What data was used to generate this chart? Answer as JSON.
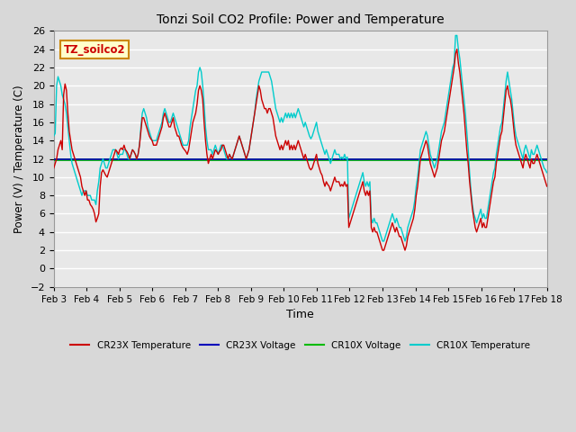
{
  "title": "Tonzi Soil CO2 Profile: Power and Temperature",
  "xlabel": "Time",
  "ylabel": "Power (V) / Temperature (C)",
  "ylim": [
    -2,
    26
  ],
  "yticks": [
    -2,
    0,
    2,
    4,
    6,
    8,
    10,
    12,
    14,
    16,
    18,
    20,
    22,
    24,
    26
  ],
  "bg_color": "#d8d8d8",
  "plot_bg_color": "#e8e8e8",
  "cr23x_temp_color": "#cc0000",
  "cr23x_volt_color": "#0000bb",
  "cr10x_volt_color": "#00bb00",
  "cr10x_temp_color": "#00cccc",
  "legend_box_color": "#ffffcc",
  "legend_box_edge": "#cc8800",
  "annotation_text": "TZ_soilco2",
  "annotation_color": "#cc0000",
  "xticklabels": [
    "Feb 3",
    "Feb 4",
    "Feb 5",
    "Feb 6",
    "Feb 7",
    "Feb 8",
    "Feb 9",
    "Feb 10",
    "Feb 11",
    "Feb 12",
    "Feb 13",
    "Feb 14",
    "Feb 15",
    "Feb 16",
    "Feb 17",
    "Feb 18"
  ],
  "cr23x_voltage_value": 12.0,
  "cr10x_voltage_value": 12.0,
  "cr23x_temp": [
    11.0,
    11.5,
    12.0,
    13.0,
    13.5,
    14.0,
    13.0,
    19.0,
    20.2,
    19.5,
    17.0,
    15.0,
    14.0,
    13.0,
    12.5,
    12.0,
    11.5,
    11.0,
    10.5,
    10.0,
    9.0,
    8.5,
    8.0,
    8.5,
    7.5,
    7.5,
    7.0,
    6.8,
    6.5,
    6.0,
    5.1,
    5.5,
    6.0,
    9.0,
    10.5,
    10.8,
    10.5,
    10.2,
    10.0,
    10.5,
    11.0,
    11.5,
    12.0,
    12.5,
    13.0,
    12.8,
    12.5,
    13.0,
    13.2,
    13.0,
    13.5,
    13.0,
    12.8,
    12.5,
    12.0,
    12.5,
    13.0,
    12.8,
    12.5,
    12.0,
    12.5,
    13.5,
    15.0,
    16.5,
    16.5,
    16.0,
    15.5,
    15.0,
    14.5,
    14.2,
    14.0,
    13.5,
    13.5,
    13.5,
    14.0,
    14.5,
    15.0,
    15.5,
    16.5,
    17.0,
    16.5,
    16.0,
    15.5,
    15.5,
    16.0,
    16.5,
    15.5,
    15.0,
    14.5,
    14.5,
    14.0,
    13.5,
    13.2,
    13.0,
    12.8,
    12.5,
    13.0,
    14.0,
    15.0,
    16.0,
    16.5,
    17.0,
    18.0,
    19.5,
    20.0,
    19.5,
    18.5,
    16.0,
    14.0,
    12.5,
    11.5,
    12.0,
    12.5,
    12.0,
    12.5,
    13.0,
    12.8,
    12.5,
    12.8,
    13.0,
    13.5,
    13.5,
    13.0,
    12.5,
    12.0,
    12.5,
    12.2,
    12.0,
    12.5,
    13.0,
    13.5,
    14.0,
    14.5,
    14.0,
    13.5,
    13.0,
    12.5,
    12.0,
    12.5,
    13.0,
    14.0,
    15.0,
    16.0,
    17.0,
    18.0,
    19.0,
    20.0,
    19.5,
    18.5,
    18.0,
    17.5,
    17.5,
    17.0,
    17.5,
    17.5,
    17.0,
    16.5,
    15.5,
    14.5,
    14.0,
    13.5,
    13.0,
    13.5,
    13.0,
    13.5,
    14.0,
    13.5,
    14.0,
    13.0,
    13.5,
    13.0,
    13.5,
    13.0,
    13.5,
    14.0,
    13.5,
    13.0,
    12.5,
    12.0,
    12.5,
    12.0,
    11.5,
    11.0,
    10.8,
    11.0,
    11.5,
    12.0,
    12.5,
    11.5,
    11.0,
    10.5,
    10.2,
    9.5,
    9.0,
    9.5,
    9.2,
    9.0,
    8.5,
    9.0,
    9.5,
    10.0,
    9.5,
    9.5,
    9.5,
    9.0,
    9.2,
    9.0,
    9.5,
    9.0,
    9.2,
    4.5,
    5.0,
    5.5,
    6.0,
    6.5,
    7.0,
    7.5,
    8.0,
    8.5,
    9.0,
    9.5,
    8.5,
    8.0,
    8.5,
    8.0,
    8.5,
    4.5,
    4.0,
    4.5,
    4.0,
    4.0,
    3.5,
    3.0,
    2.5,
    2.0,
    2.0,
    2.5,
    3.0,
    3.5,
    4.0,
    4.5,
    5.0,
    4.5,
    4.0,
    4.5,
    4.0,
    3.5,
    3.5,
    3.0,
    2.5,
    2.0,
    2.5,
    3.5,
    4.0,
    4.5,
    5.0,
    5.5,
    6.5,
    8.0,
    9.0,
    10.5,
    12.0,
    12.5,
    13.0,
    13.5,
    14.0,
    13.5,
    12.5,
    11.5,
    11.0,
    10.5,
    10.0,
    10.5,
    11.0,
    12.0,
    13.0,
    14.0,
    14.5,
    15.0,
    16.0,
    17.0,
    18.0,
    19.0,
    20.0,
    21.0,
    22.0,
    23.5,
    24.0,
    22.5,
    21.5,
    20.0,
    18.5,
    17.0,
    15.0,
    13.0,
    11.5,
    9.5,
    8.0,
    6.5,
    5.5,
    4.5,
    4.0,
    4.5,
    5.0,
    5.5,
    4.5,
    5.0,
    4.5,
    4.5,
    5.5,
    6.5,
    7.5,
    8.5,
    9.5,
    10.0,
    11.5,
    12.5,
    13.5,
    14.5,
    15.0,
    16.5,
    18.0,
    19.5,
    20.0,
    19.0,
    18.5,
    17.5,
    16.0,
    14.5,
    13.5,
    13.0,
    12.5,
    12.0,
    11.5,
    11.0,
    12.0,
    12.5,
    12.0,
    11.5,
    11.0,
    12.0,
    11.5,
    11.5,
    12.0,
    12.5,
    12.0,
    11.5,
    11.0,
    10.5,
    10.0,
    9.5,
    9.0
  ],
  "cr10x_temp": [
    14.5,
    14.8,
    20.0,
    21.0,
    20.5,
    20.0,
    19.0,
    18.5,
    18.0,
    17.0,
    15.5,
    14.0,
    12.5,
    11.5,
    11.0,
    10.5,
    10.0,
    9.5,
    9.0,
    8.5,
    8.0,
    8.5,
    8.5,
    8.5,
    8.0,
    8.0,
    8.0,
    7.5,
    7.5,
    7.5,
    7.0,
    8.5,
    9.5,
    11.0,
    11.5,
    12.0,
    11.5,
    11.0,
    11.0,
    11.5,
    12.0,
    12.5,
    13.0,
    13.0,
    13.0,
    12.5,
    12.0,
    12.5,
    12.5,
    12.5,
    13.0,
    13.0,
    12.5,
    12.0,
    12.0,
    12.5,
    13.0,
    12.8,
    12.5,
    12.0,
    12.5,
    13.5,
    15.5,
    17.0,
    17.5,
    17.0,
    16.5,
    15.5,
    15.0,
    14.5,
    14.0,
    14.0,
    14.0,
    14.0,
    14.5,
    15.0,
    15.5,
    16.0,
    17.0,
    17.5,
    17.0,
    16.5,
    16.0,
    16.0,
    16.5,
    17.0,
    16.5,
    16.0,
    15.5,
    15.0,
    14.5,
    14.0,
    13.5,
    13.5,
    13.5,
    13.5,
    14.0,
    15.5,
    16.5,
    17.5,
    18.5,
    19.5,
    20.0,
    21.5,
    22.0,
    21.5,
    20.0,
    18.0,
    15.5,
    14.0,
    13.0,
    13.0,
    13.0,
    12.5,
    13.0,
    13.5,
    13.0,
    12.5,
    13.0,
    13.5,
    13.5,
    13.0,
    12.5,
    12.0,
    12.0,
    12.5,
    12.2,
    12.0,
    12.5,
    13.0,
    13.5,
    14.0,
    14.5,
    14.0,
    13.5,
    13.0,
    12.5,
    12.0,
    12.5,
    13.0,
    14.0,
    15.0,
    16.0,
    17.0,
    18.5,
    19.5,
    20.5,
    21.0,
    21.5,
    21.5,
    21.5,
    21.5,
    21.5,
    21.5,
    21.0,
    20.5,
    19.5,
    18.5,
    17.5,
    17.0,
    16.5,
    16.0,
    16.5,
    16.0,
    16.5,
    17.0,
    16.5,
    17.0,
    16.5,
    17.0,
    16.5,
    17.0,
    16.5,
    17.0,
    17.5,
    17.0,
    16.5,
    16.0,
    15.5,
    16.0,
    15.5,
    15.0,
    14.5,
    14.2,
    14.5,
    15.0,
    15.5,
    16.0,
    15.0,
    14.5,
    14.0,
    13.5,
    13.0,
    12.5,
    13.0,
    12.5,
    12.0,
    11.5,
    12.0,
    12.5,
    13.0,
    12.5,
    12.5,
    12.5,
    12.0,
    12.2,
    12.0,
    12.5,
    12.0,
    12.2,
    5.5,
    6.0,
    6.5,
    7.0,
    7.5,
    8.0,
    8.5,
    9.0,
    9.5,
    10.0,
    10.5,
    9.5,
    9.0,
    9.5,
    9.0,
    9.5,
    5.5,
    5.0,
    5.5,
    5.0,
    5.0,
    4.5,
    4.0,
    3.5,
    3.0,
    3.0,
    3.5,
    4.0,
    4.5,
    5.0,
    5.5,
    6.0,
    5.5,
    5.0,
    5.5,
    5.0,
    4.5,
    4.5,
    4.0,
    3.5,
    3.0,
    3.5,
    4.5,
    5.0,
    5.5,
    6.0,
    6.5,
    7.5,
    9.0,
    10.0,
    11.5,
    13.0,
    13.5,
    14.0,
    14.5,
    15.0,
    14.5,
    13.5,
    12.5,
    12.0,
    11.5,
    11.0,
    11.5,
    12.0,
    13.0,
    14.0,
    15.0,
    15.5,
    16.0,
    17.0,
    18.0,
    19.0,
    20.0,
    21.0,
    22.0,
    22.5,
    25.5,
    25.5,
    24.0,
    23.0,
    21.5,
    20.0,
    18.5,
    17.0,
    15.0,
    13.0,
    10.5,
    8.5,
    7.0,
    6.0,
    5.5,
    5.0,
    5.5,
    6.0,
    6.5,
    5.5,
    6.0,
    5.5,
    5.5,
    6.5,
    7.5,
    8.5,
    9.5,
    10.5,
    11.0,
    12.5,
    13.5,
    14.5,
    15.5,
    16.0,
    17.5,
    19.0,
    20.5,
    21.5,
    20.5,
    19.5,
    18.5,
    17.0,
    15.5,
    14.5,
    14.0,
    13.5,
    13.0,
    12.5,
    12.0,
    13.0,
    13.5,
    13.0,
    12.5,
    12.0,
    13.0,
    12.5,
    12.5,
    13.0,
    13.5,
    13.0,
    12.5,
    12.0,
    11.5,
    11.0,
    10.8,
    10.5
  ]
}
